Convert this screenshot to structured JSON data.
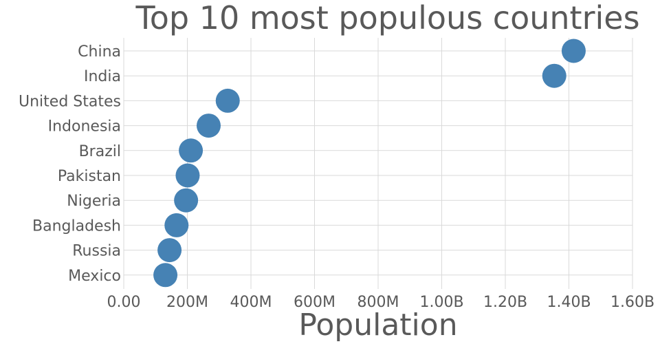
{
  "chart_data": {
    "type": "scatter",
    "title": "Top 10 most populous countries",
    "xlabel": "Population",
    "ylabel": "",
    "xlim": [
      0,
      1600000000
    ],
    "x_ticks": [
      0,
      200000000,
      400000000,
      600000000,
      800000000,
      1000000000,
      1200000000,
      1400000000,
      1600000000
    ],
    "x_tick_labels": [
      "0.00",
      "200M",
      "400M",
      "600M",
      "800M",
      "1.00B",
      "1.20B",
      "1.40B",
      "1.60B"
    ],
    "grid": true,
    "legend": "none",
    "point_color": "#4682b4",
    "categories": [
      "China",
      "India",
      "United States",
      "Indonesia",
      "Brazil",
      "Pakistan",
      "Nigeria",
      "Bangladesh",
      "Russia",
      "Mexico"
    ],
    "values": [
      1415000000,
      1354000000,
      327000000,
      267000000,
      211000000,
      201000000,
      196000000,
      166000000,
      144000000,
      131000000
    ]
  }
}
